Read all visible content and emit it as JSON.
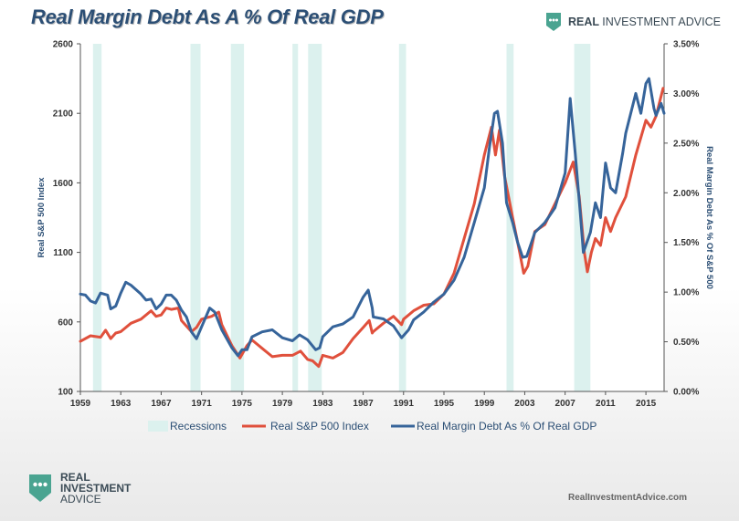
{
  "title": "Real Margin Debt As A % Of Real GDP",
  "brand": {
    "word1": "REAL",
    "word2": "INVESTMENT ADVICE"
  },
  "logo": {
    "line1": "REAL",
    "line2": "INVESTMENT",
    "line3": "ADVICE"
  },
  "site": "RealInvestmentAdvice.com",
  "colors": {
    "title": "#2c4f75",
    "sp500": "#e0503c",
    "margin": "#36649a",
    "recession": "#dcf1ee",
    "logo": "#4aa491"
  },
  "chart_data": {
    "type": "line",
    "title": "Real Margin Debt As A % Of Real GDP",
    "ylabel_left": "Real S&P 500 Index",
    "ylabel_right": "Real Margin Debt As % Of S&P 500",
    "xlim": [
      1959,
      2016.8
    ],
    "ylim_left": [
      100,
      2600
    ],
    "ylim_right": [
      0,
      3.5
    ],
    "x_ticks": [
      "1959",
      "1963",
      "1967",
      "1971",
      "1975",
      "1979",
      "1983",
      "1987",
      "1991",
      "1995",
      "1999",
      "2003",
      "2007",
      "2011",
      "2015"
    ],
    "y_ticks_left": [
      "100",
      "600",
      "1100",
      "1600",
      "2100",
      "2600"
    ],
    "y_ticks_right": [
      "0.00%",
      "0.50%",
      "1.00%",
      "1.50%",
      "2.00%",
      "2.50%",
      "3.00%",
      "3.50%"
    ],
    "recessions": [
      [
        1960.25,
        1961.1
      ],
      [
        1969.9,
        1970.9
      ],
      [
        1973.9,
        1975.2
      ],
      [
        1980.0,
        1980.55
      ],
      [
        1981.55,
        1982.9
      ],
      [
        1990.55,
        1991.25
      ],
      [
        2001.2,
        2001.9
      ],
      [
        2007.9,
        2009.5
      ]
    ],
    "legend": [
      "Recessions",
      "Real S&P 500 Index",
      "Real Margin Debt As % Of Real GDP"
    ],
    "series": [
      {
        "name": "Real S&P 500 Index",
        "axis": "left",
        "points": [
          [
            1959,
            460
          ],
          [
            1960,
            500
          ],
          [
            1961,
            490
          ],
          [
            1961.5,
            540
          ],
          [
            1962,
            480
          ],
          [
            1962.5,
            520
          ],
          [
            1963,
            530
          ],
          [
            1964,
            590
          ],
          [
            1965,
            620
          ],
          [
            1966,
            680
          ],
          [
            1966.5,
            640
          ],
          [
            1967,
            650
          ],
          [
            1967.5,
            700
          ],
          [
            1968,
            690
          ],
          [
            1968.7,
            700
          ],
          [
            1969,
            610
          ],
          [
            1970,
            530
          ],
          [
            1970.5,
            560
          ],
          [
            1971,
            620
          ],
          [
            1972,
            640
          ],
          [
            1972.7,
            670
          ],
          [
            1973,
            580
          ],
          [
            1974,
            430
          ],
          [
            1974.8,
            340
          ],
          [
            1975.5,
            430
          ],
          [
            1976,
            470
          ],
          [
            1977,
            410
          ],
          [
            1978,
            350
          ],
          [
            1979,
            360
          ],
          [
            1980,
            360
          ],
          [
            1980.8,
            390
          ],
          [
            1981.5,
            330
          ],
          [
            1982,
            320
          ],
          [
            1982.6,
            280
          ],
          [
            1983,
            360
          ],
          [
            1984,
            340
          ],
          [
            1985,
            380
          ],
          [
            1986,
            480
          ],
          [
            1987,
            560
          ],
          [
            1987.6,
            610
          ],
          [
            1987.9,
            520
          ],
          [
            1988,
            530
          ],
          [
            1989,
            590
          ],
          [
            1990,
            640
          ],
          [
            1990.8,
            580
          ],
          [
            1991,
            620
          ],
          [
            1992,
            680
          ],
          [
            1993,
            720
          ],
          [
            1994,
            730
          ],
          [
            1995,
            800
          ],
          [
            1996,
            950
          ],
          [
            1997,
            1200
          ],
          [
            1998,
            1450
          ],
          [
            1999,
            1800
          ],
          [
            1999.7,
            2000
          ],
          [
            2000.1,
            1800
          ],
          [
            2000.5,
            1980
          ],
          [
            2001,
            1650
          ],
          [
            2001.8,
            1350
          ],
          [
            2002.5,
            1100
          ],
          [
            2002.9,
            950
          ],
          [
            2003.3,
            1000
          ],
          [
            2004,
            1250
          ],
          [
            2005,
            1300
          ],
          [
            2006,
            1450
          ],
          [
            2007,
            1600
          ],
          [
            2007.8,
            1750
          ],
          [
            2008.4,
            1500
          ],
          [
            2008.9,
            1100
          ],
          [
            2009.2,
            960
          ],
          [
            2009.6,
            1100
          ],
          [
            2010,
            1200
          ],
          [
            2010.5,
            1150
          ],
          [
            2011,
            1350
          ],
          [
            2011.5,
            1250
          ],
          [
            2012,
            1350
          ],
          [
            2013,
            1500
          ],
          [
            2014,
            1800
          ],
          [
            2015,
            2050
          ],
          [
            2015.5,
            2000
          ],
          [
            2016,
            2080
          ],
          [
            2016.7,
            2280
          ]
        ]
      },
      {
        "name": "Real Margin Debt As % Of Real GDP",
        "axis": "right",
        "points": [
          [
            1959,
            0.98
          ],
          [
            1959.5,
            0.97
          ],
          [
            1960,
            0.91
          ],
          [
            1960.5,
            0.89
          ],
          [
            1961,
            0.99
          ],
          [
            1961.7,
            0.97
          ],
          [
            1962,
            0.83
          ],
          [
            1962.5,
            0.86
          ],
          [
            1963,
            0.99
          ],
          [
            1963.5,
            1.1
          ],
          [
            1964,
            1.07
          ],
          [
            1965,
            0.98
          ],
          [
            1965.5,
            0.92
          ],
          [
            1966,
            0.93
          ],
          [
            1966.5,
            0.83
          ],
          [
            1967,
            0.88
          ],
          [
            1967.5,
            0.97
          ],
          [
            1968,
            0.97
          ],
          [
            1968.5,
            0.92
          ],
          [
            1969,
            0.82
          ],
          [
            1969.5,
            0.75
          ],
          [
            1970,
            0.6
          ],
          [
            1970.5,
            0.53
          ],
          [
            1971,
            0.65
          ],
          [
            1971.8,
            0.84
          ],
          [
            1972.3,
            0.8
          ],
          [
            1973,
            0.62
          ],
          [
            1974,
            0.44
          ],
          [
            1974.6,
            0.36
          ],
          [
            1975,
            0.42
          ],
          [
            1975.5,
            0.42
          ],
          [
            1976,
            0.55
          ],
          [
            1977,
            0.6
          ],
          [
            1978,
            0.62
          ],
          [
            1979,
            0.54
          ],
          [
            1980,
            0.51
          ],
          [
            1980.7,
            0.57
          ],
          [
            1981.5,
            0.52
          ],
          [
            1982.3,
            0.42
          ],
          [
            1982.7,
            0.44
          ],
          [
            1983,
            0.55
          ],
          [
            1984,
            0.65
          ],
          [
            1985,
            0.68
          ],
          [
            1986,
            0.75
          ],
          [
            1987,
            0.95
          ],
          [
            1987.5,
            1.02
          ],
          [
            1987.9,
            0.84
          ],
          [
            1988,
            0.75
          ],
          [
            1989,
            0.73
          ],
          [
            1990,
            0.66
          ],
          [
            1990.8,
            0.54
          ],
          [
            1991.5,
            0.62
          ],
          [
            1992,
            0.72
          ],
          [
            1993,
            0.8
          ],
          [
            1994,
            0.9
          ],
          [
            1995,
            0.98
          ],
          [
            1996,
            1.12
          ],
          [
            1997,
            1.35
          ],
          [
            1998,
            1.7
          ],
          [
            1999,
            2.05
          ],
          [
            1999.5,
            2.45
          ],
          [
            2000.0,
            2.8
          ],
          [
            2000.3,
            2.82
          ],
          [
            2000.8,
            2.5
          ],
          [
            2001.2,
            1.9
          ],
          [
            2001.8,
            1.7
          ],
          [
            2002.3,
            1.5
          ],
          [
            2002.8,
            1.35
          ],
          [
            2003.2,
            1.36
          ],
          [
            2004,
            1.6
          ],
          [
            2005,
            1.7
          ],
          [
            2006,
            1.85
          ],
          [
            2007,
            2.2
          ],
          [
            2007.5,
            2.95
          ],
          [
            2008,
            2.4
          ],
          [
            2008.5,
            1.8
          ],
          [
            2008.8,
            1.4
          ],
          [
            2009.5,
            1.6
          ],
          [
            2010,
            1.9
          ],
          [
            2010.5,
            1.75
          ],
          [
            2011,
            2.3
          ],
          [
            2011.5,
            2.05
          ],
          [
            2012,
            2.0
          ],
          [
            2012.7,
            2.4
          ],
          [
            2013,
            2.6
          ],
          [
            2014,
            3.0
          ],
          [
            2014.5,
            2.8
          ],
          [
            2015,
            3.1
          ],
          [
            2015.3,
            3.15
          ],
          [
            2015.8,
            2.85
          ],
          [
            2016,
            2.78
          ],
          [
            2016.5,
            2.9
          ],
          [
            2016.8,
            2.8
          ]
        ]
      }
    ]
  }
}
